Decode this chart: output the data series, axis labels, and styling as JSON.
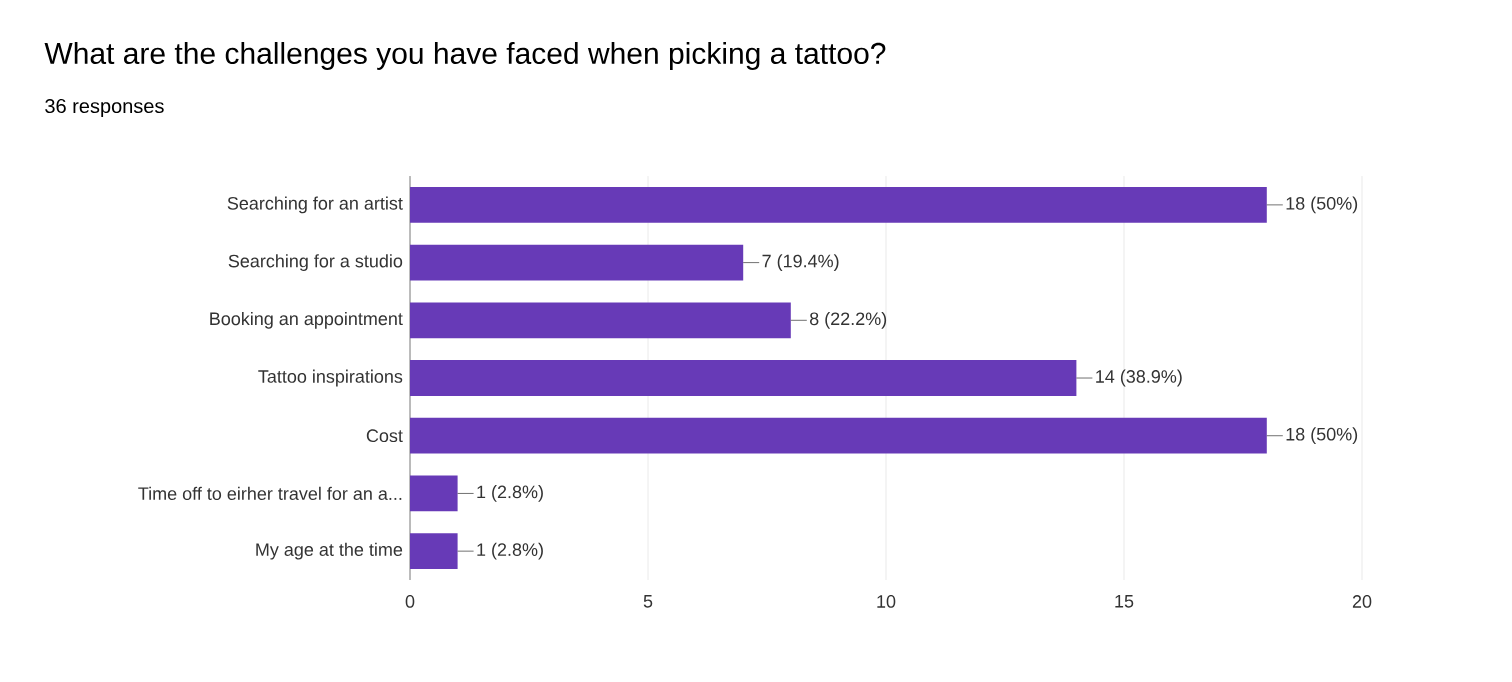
{
  "chart_data": {
    "type": "bar",
    "orientation": "horizontal",
    "title": "What are the challenges you have faced when picking a tattoo?",
    "subtitle": "36 responses",
    "categories": [
      "Searching for an artist",
      "Searching for a studio",
      "Booking an appointment",
      "Tattoo inspirations",
      "Cost",
      "Time off to eirher travel for an a...",
      "My age at the time"
    ],
    "values": [
      18,
      7,
      8,
      14,
      18,
      1,
      1
    ],
    "value_labels": [
      "18 (50%)",
      "7 (19.4%)",
      "8 (22.2%)",
      "14 (38.9%)",
      "18 (50%)",
      "1 (2.8%)",
      "1 (2.8%)"
    ],
    "color": "#673ab7",
    "xlim": [
      0,
      20
    ],
    "xticks": [
      0,
      5,
      10,
      15,
      20
    ],
    "grid": "x"
  }
}
